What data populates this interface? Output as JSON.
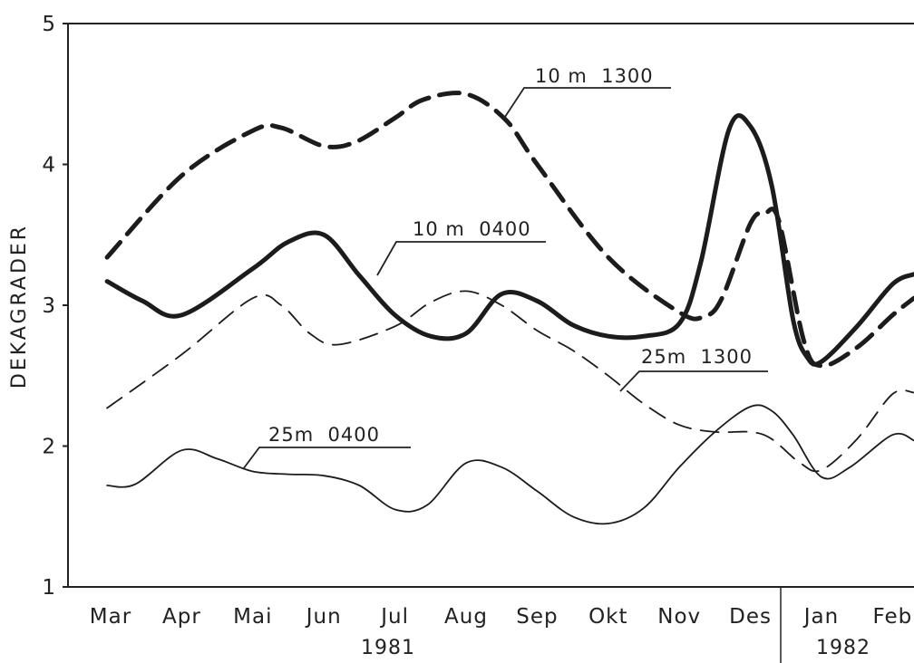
{
  "chart_data": {
    "type": "line",
    "ylabel": "DEKAGRADER",
    "ylim": [
      1,
      5
    ],
    "yticks": [
      "1",
      "2",
      "3",
      "4",
      "5"
    ],
    "categories": [
      "Mar",
      "Apr",
      "Mai",
      "Jun",
      "Jul",
      "Aug",
      "Sep",
      "Okt",
      "Nov",
      "Des",
      "Jan",
      "Feb"
    ],
    "years": [
      "1981",
      "1982"
    ],
    "series": [
      {
        "name": "10 m  1300",
        "style": "thick-dashed",
        "x": [
          -0.05,
          1,
          2,
          2.4,
          3,
          3.45,
          4,
          4.4,
          5,
          5.55,
          6,
          7,
          8,
          8.35,
          8.6,
          9,
          9.2,
          9.4,
          9.75,
          10,
          10.5,
          11,
          11.3
        ],
        "y": [
          3.34,
          3.92,
          4.24,
          4.26,
          4.13,
          4.16,
          4.33,
          4.46,
          4.5,
          4.32,
          4.0,
          3.34,
          2.95,
          2.92,
          3.05,
          3.58,
          3.65,
          3.6,
          2.75,
          2.57,
          2.7,
          2.93,
          3.05
        ]
      },
      {
        "name": "10 m  0400",
        "style": "thick-solid",
        "x": [
          -0.05,
          0.45,
          1,
          2,
          2.5,
          3,
          3.5,
          4,
          4.5,
          5,
          5.5,
          6,
          6.5,
          7,
          7.5,
          8,
          8.3,
          8.7,
          9,
          9.3,
          9.6,
          9.8,
          10,
          10.5,
          11,
          11.3
        ],
        "y": [
          3.17,
          3.03,
          2.93,
          3.26,
          3.45,
          3.5,
          3.21,
          2.93,
          2.78,
          2.8,
          3.08,
          3.03,
          2.86,
          2.78,
          2.78,
          2.87,
          3.3,
          4.25,
          4.27,
          3.85,
          2.9,
          2.63,
          2.6,
          2.85,
          3.15,
          3.22
        ]
      },
      {
        "name": "25m  1300",
        "style": "thin-dashed",
        "x": [
          -0.05,
          1,
          2,
          2.4,
          2.8,
          3.2,
          4,
          4.5,
          5,
          5.5,
          6,
          6.5,
          7,
          7.5,
          8,
          8.5,
          9,
          9.3,
          9.7,
          10,
          10.5,
          11,
          11.3
        ],
        "y": [
          2.27,
          2.65,
          3.05,
          3.0,
          2.8,
          2.72,
          2.85,
          3.02,
          3.1,
          3.0,
          2.82,
          2.68,
          2.5,
          2.3,
          2.15,
          2.1,
          2.1,
          2.05,
          1.88,
          1.83,
          2.05,
          2.37,
          2.38
        ]
      },
      {
        "name": "25m  0400",
        "style": "thin-solid",
        "x": [
          -0.05,
          0.35,
          1,
          1.5,
          2,
          2.5,
          3,
          3.5,
          4,
          4.45,
          5,
          5.5,
          6,
          6.5,
          7,
          7.5,
          8,
          8.5,
          9,
          9.3,
          9.6,
          10,
          10.4,
          11,
          11.3
        ],
        "y": [
          1.72,
          1.73,
          1.97,
          1.91,
          1.82,
          1.8,
          1.79,
          1.72,
          1.55,
          1.58,
          1.88,
          1.85,
          1.68,
          1.5,
          1.45,
          1.56,
          1.85,
          2.1,
          2.28,
          2.25,
          2.08,
          1.78,
          1.85,
          2.08,
          2.04
        ]
      }
    ]
  }
}
